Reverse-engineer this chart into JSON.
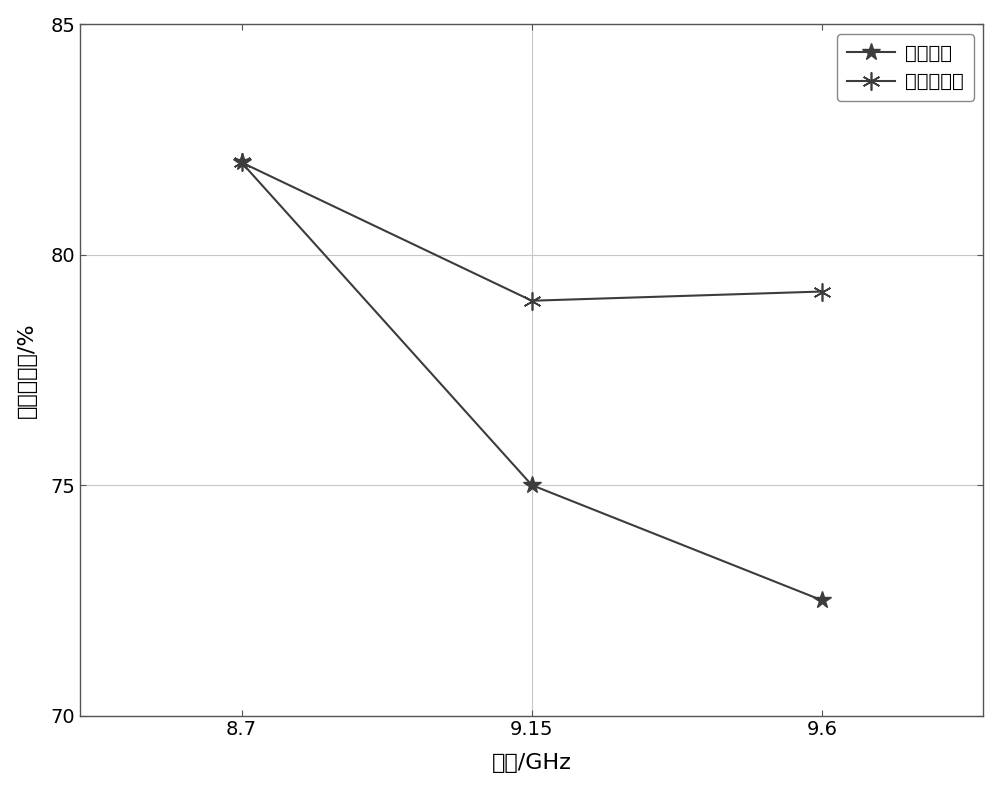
{
  "x": [
    8.7,
    9.15,
    9.6
  ],
  "line1_y": [
    82.0,
    75.0,
    72.5
  ],
  "line2_y": [
    82.0,
    79.0,
    79.2
  ],
  "line1_label": "现有方法",
  "line2_label": "本发明方法",
  "line_color": "#3c3c3c",
  "xlabel": "载频/GHz",
  "ylabel": "准确识别率/%",
  "xlim": [
    8.45,
    9.85
  ],
  "ylim": [
    70,
    85
  ],
  "yticks": [
    70,
    75,
    80,
    85
  ],
  "xticks": [
    8.7,
    9.15,
    9.6
  ],
  "xtick_labels": [
    "8.7",
    "9.15",
    "9.6"
  ],
  "ytick_labels": [
    "70",
    "75",
    "80",
    "85"
  ],
  "grid_color": "#c8c8c8",
  "background_color": "#ffffff",
  "linewidth": 1.5,
  "fontsize_label": 16,
  "fontsize_tick": 14,
  "fontsize_legend": 14
}
